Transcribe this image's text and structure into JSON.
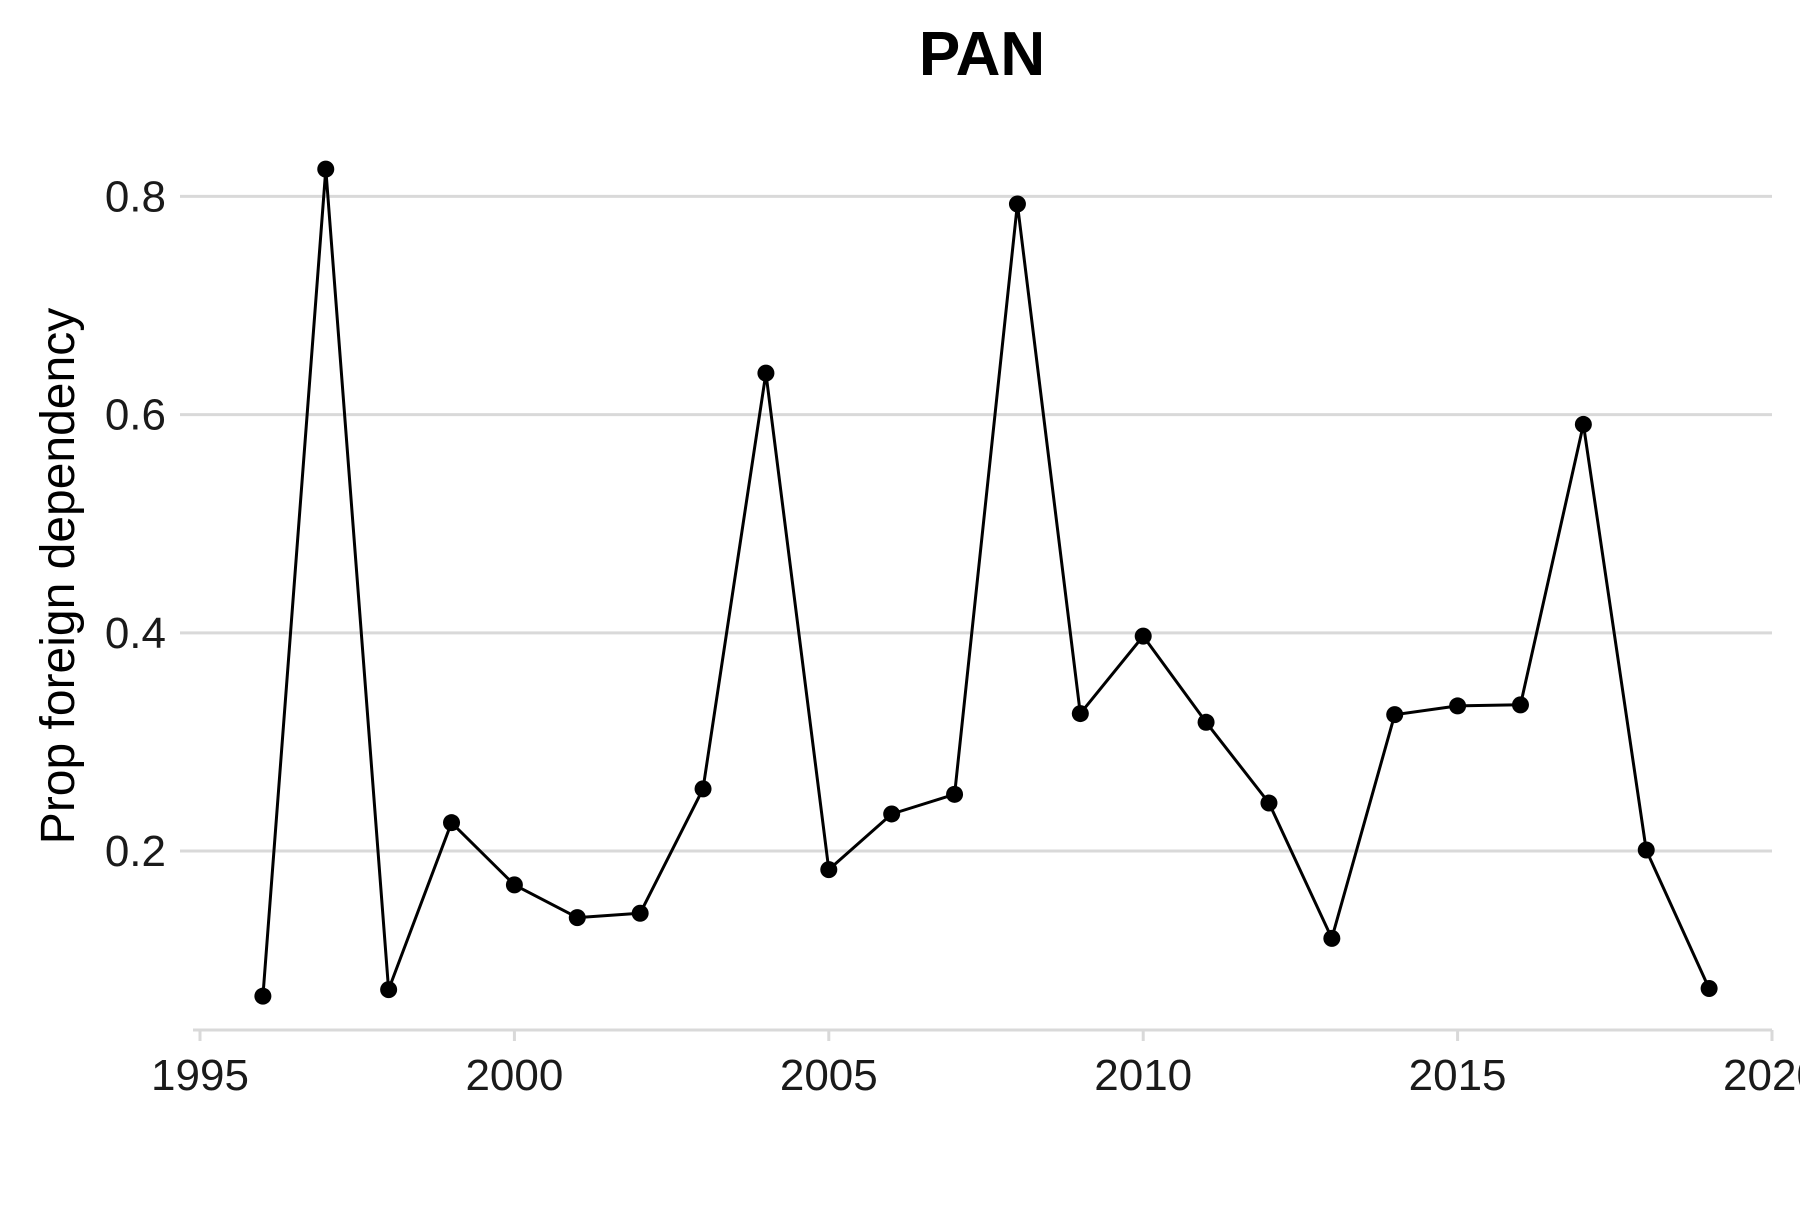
{
  "chart_data": {
    "type": "line",
    "title": "PAN",
    "xlabel": "",
    "ylabel": "Prop foreign dependency",
    "xlim": [
      1995,
      2020
    ],
    "ylim": [
      0.036,
      0.87
    ],
    "x_ticks": [
      1995,
      2000,
      2005,
      2010,
      2015,
      2020
    ],
    "y_ticks": [
      0.2,
      0.4,
      0.6,
      0.8
    ],
    "x_tick_labels": [
      "1995",
      "2000",
      "2005",
      "2010",
      "2015",
      "2020"
    ],
    "y_tick_labels": [
      "0.2",
      "0.4",
      "0.6",
      "0.8"
    ],
    "grid": "horizontal",
    "line_color": "#000000",
    "grid_color": "#d9d9d9",
    "series": [
      {
        "x": [
          1996,
          1997,
          1998,
          1999,
          2000,
          2001,
          2002,
          2003,
          2004,
          2005,
          2006,
          2007,
          2008,
          2009,
          2010,
          2011,
          2012,
          2013,
          2014,
          2015,
          2016,
          2017,
          2018,
          2019
        ],
        "y": [
          0.067,
          0.825,
          0.073,
          0.226,
          0.169,
          0.139,
          0.143,
          0.257,
          0.638,
          0.183,
          0.234,
          0.252,
          0.793,
          0.326,
          0.397,
          0.318,
          0.244,
          0.12,
          0.325,
          0.333,
          0.334,
          0.591,
          0.201,
          0.074
        ]
      }
    ]
  }
}
